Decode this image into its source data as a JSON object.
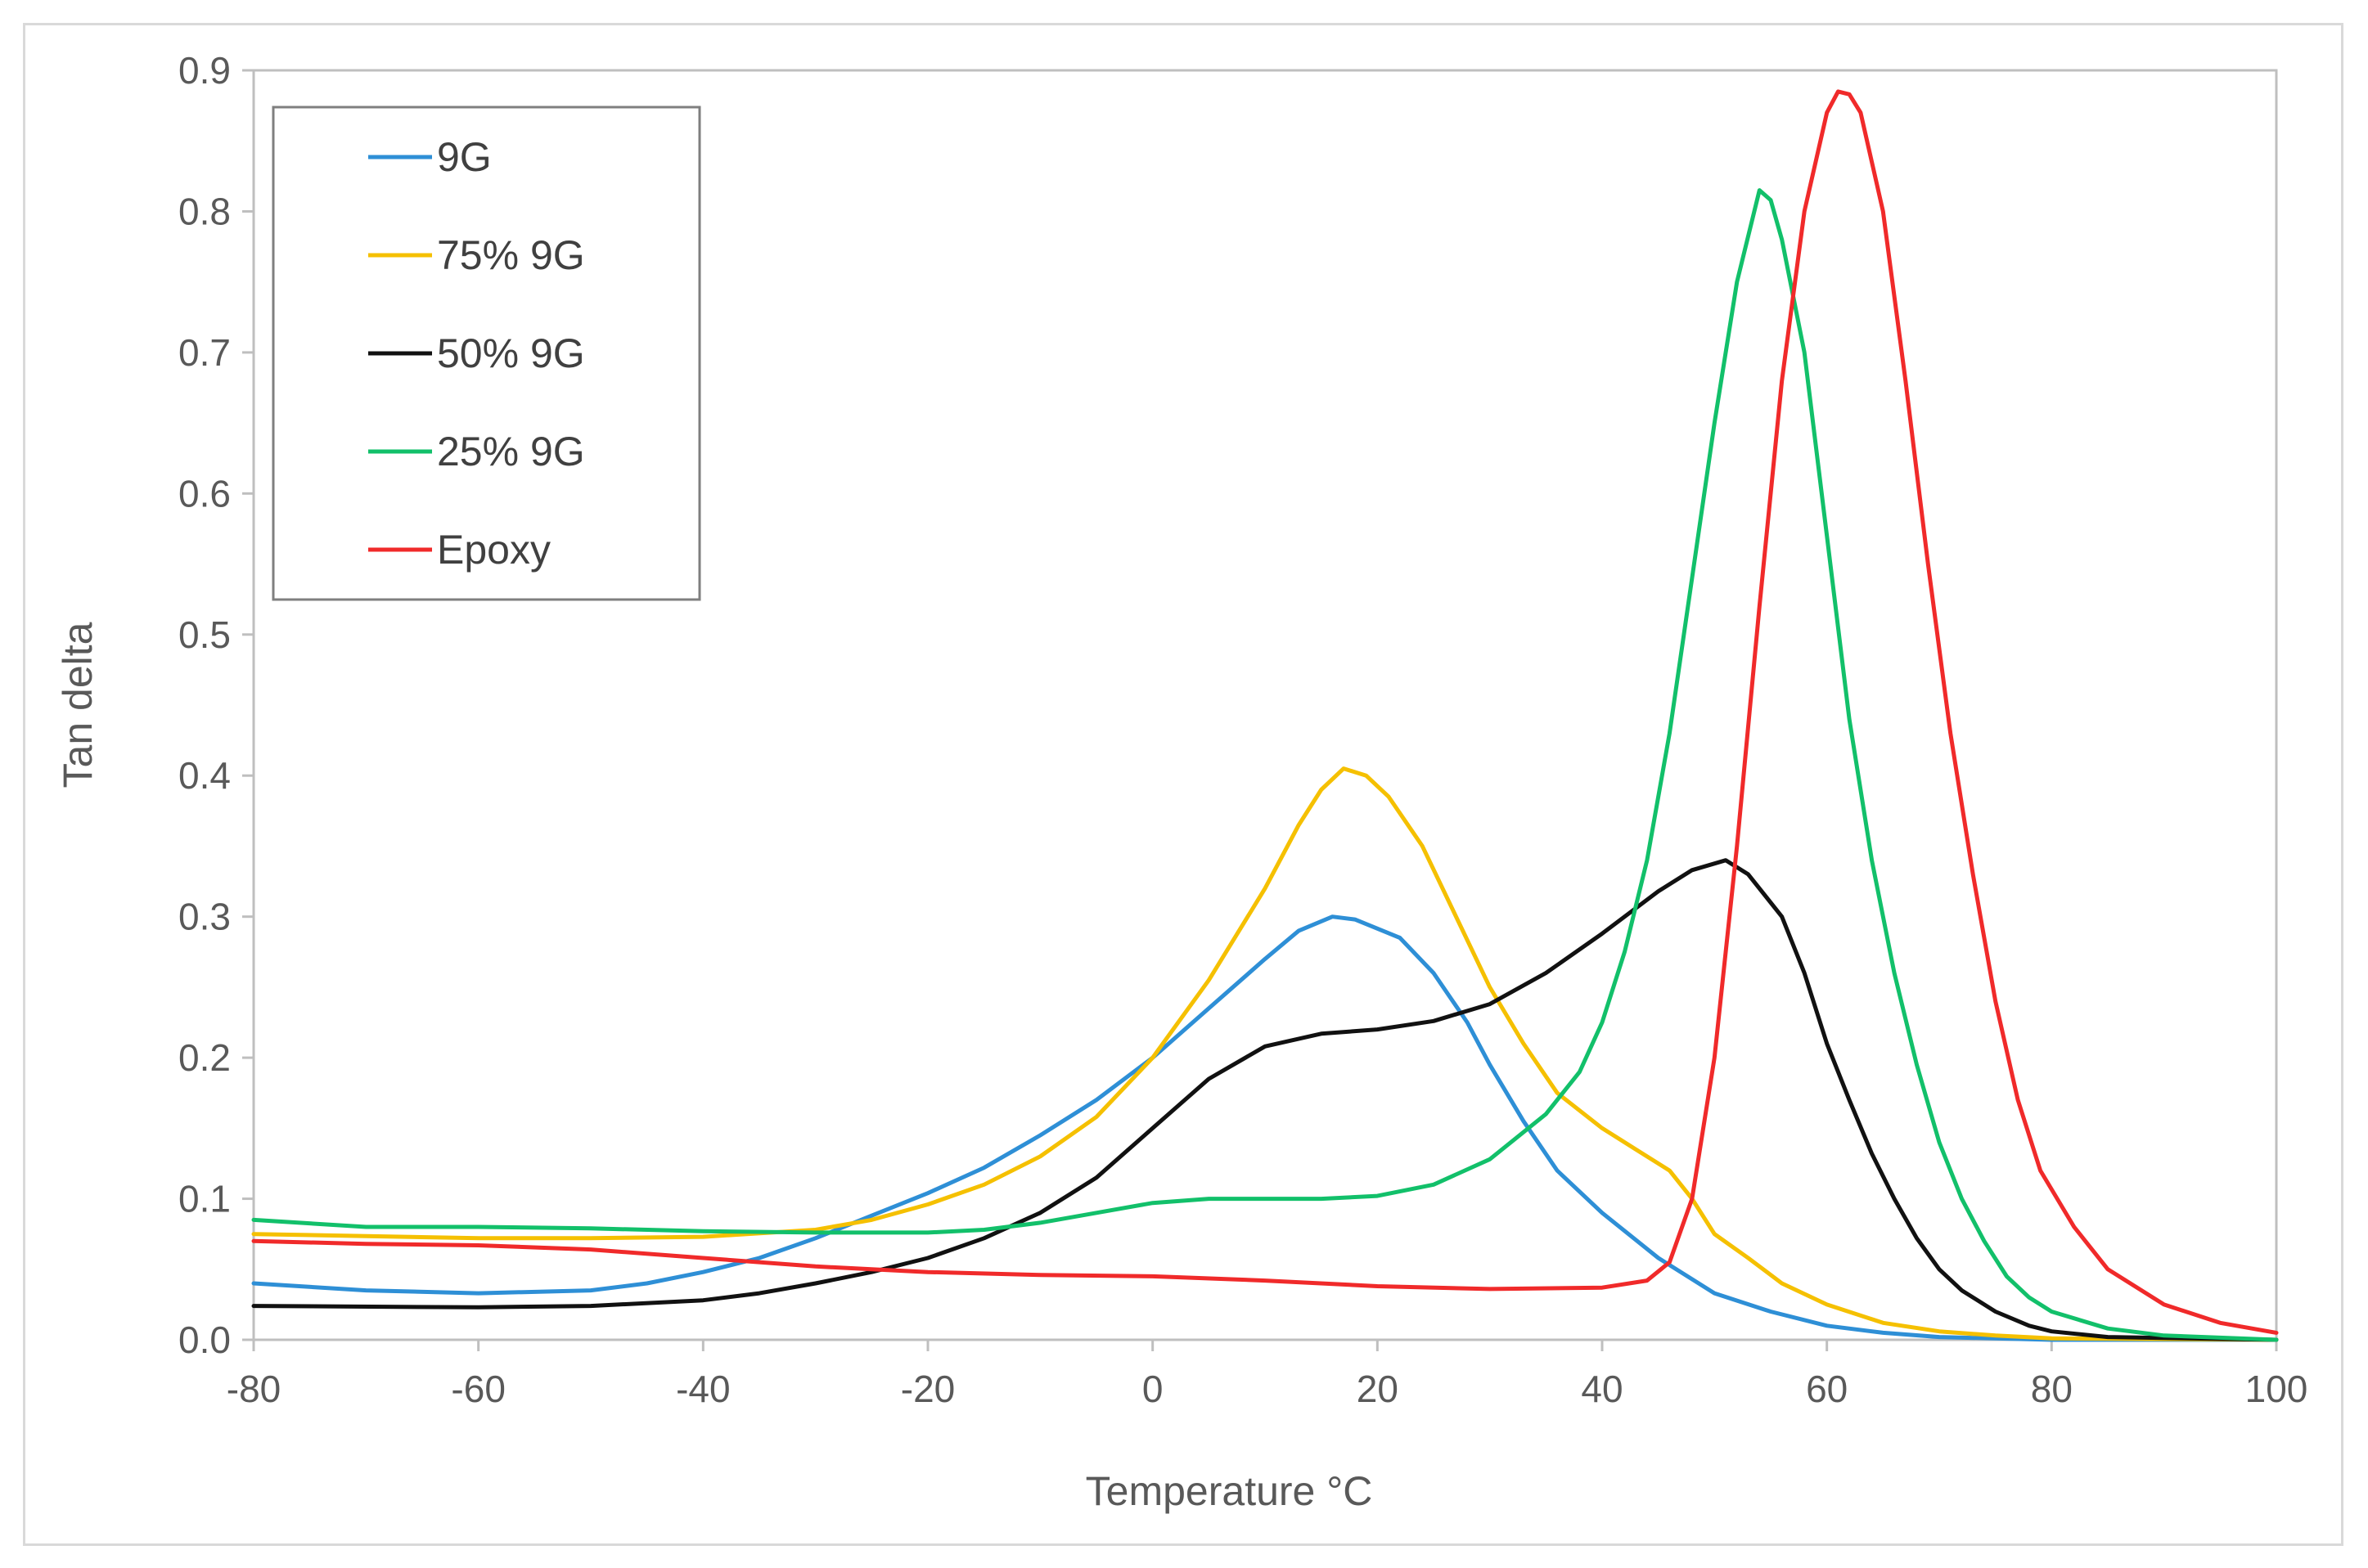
{
  "chart_data": {
    "type": "line",
    "title": "",
    "xlabel": "Temperature °C",
    "ylabel": "Tan delta",
    "xlim": [
      -80,
      100
    ],
    "ylim": [
      0,
      0.9
    ],
    "xticks": [
      -80,
      -60,
      -40,
      -20,
      0,
      20,
      40,
      60,
      80,
      100
    ],
    "xtick_labels": [
      "-80",
      "-60",
      "-40",
      "-20",
      "0",
      "20",
      "40",
      "60",
      "80",
      "100"
    ],
    "yticks": [
      0,
      0.1,
      0.2,
      0.3,
      0.4,
      0.5,
      0.6,
      0.7,
      0.8,
      0.9
    ],
    "ytick_labels": [
      "0.0",
      "0.1",
      "0.2",
      "0.3",
      "0.4",
      "0.5",
      "0.6",
      "0.7",
      "0.8",
      "0.9"
    ],
    "grid": false,
    "legend_position": "top-left",
    "series": [
      {
        "name": "9G",
        "color": "#2e8fd6",
        "points": [
          [
            -80,
            0.04
          ],
          [
            -70,
            0.035
          ],
          [
            -60,
            0.033
          ],
          [
            -50,
            0.035
          ],
          [
            -45,
            0.04
          ],
          [
            -40,
            0.048
          ],
          [
            -35,
            0.058
          ],
          [
            -30,
            0.072
          ],
          [
            -25,
            0.088
          ],
          [
            -20,
            0.104
          ],
          [
            -15,
            0.122
          ],
          [
            -10,
            0.145
          ],
          [
            -5,
            0.17
          ],
          [
            0,
            0.2
          ],
          [
            5,
            0.235
          ],
          [
            10,
            0.27
          ],
          [
            13,
            0.29
          ],
          [
            16,
            0.3
          ],
          [
            18,
            0.298
          ],
          [
            22,
            0.285
          ],
          [
            25,
            0.26
          ],
          [
            28,
            0.225
          ],
          [
            30,
            0.195
          ],
          [
            33,
            0.155
          ],
          [
            36,
            0.12
          ],
          [
            40,
            0.09
          ],
          [
            45,
            0.058
          ],
          [
            50,
            0.033
          ],
          [
            55,
            0.02
          ],
          [
            60,
            0.01
          ],
          [
            65,
            0.005
          ],
          [
            70,
            0.002
          ],
          [
            80,
            0.0
          ],
          [
            100,
            0.0
          ]
        ]
      },
      {
        "name": "75% 9G",
        "color": "#f5c000",
        "points": [
          [
            -80,
            0.075
          ],
          [
            -60,
            0.072
          ],
          [
            -50,
            0.072
          ],
          [
            -40,
            0.073
          ],
          [
            -30,
            0.078
          ],
          [
            -25,
            0.085
          ],
          [
            -20,
            0.096
          ],
          [
            -15,
            0.11
          ],
          [
            -10,
            0.13
          ],
          [
            -5,
            0.158
          ],
          [
            0,
            0.2
          ],
          [
            5,
            0.255
          ],
          [
            10,
            0.32
          ],
          [
            13,
            0.365
          ],
          [
            15,
            0.39
          ],
          [
            17,
            0.405
          ],
          [
            19,
            0.4
          ],
          [
            21,
            0.385
          ],
          [
            24,
            0.35
          ],
          [
            27,
            0.3
          ],
          [
            30,
            0.25
          ],
          [
            33,
            0.21
          ],
          [
            36,
            0.175
          ],
          [
            40,
            0.15
          ],
          [
            43,
            0.135
          ],
          [
            46,
            0.12
          ],
          [
            48,
            0.1
          ],
          [
            50,
            0.075
          ],
          [
            53,
            0.058
          ],
          [
            56,
            0.04
          ],
          [
            60,
            0.025
          ],
          [
            65,
            0.012
          ],
          [
            70,
            0.006
          ],
          [
            75,
            0.003
          ],
          [
            80,
            0.001
          ],
          [
            100,
            0.0
          ]
        ]
      },
      {
        "name": "50% 9G",
        "color": "#111111",
        "points": [
          [
            -80,
            0.024
          ],
          [
            -60,
            0.023
          ],
          [
            -50,
            0.024
          ],
          [
            -40,
            0.028
          ],
          [
            -35,
            0.033
          ],
          [
            -30,
            0.04
          ],
          [
            -25,
            0.048
          ],
          [
            -20,
            0.058
          ],
          [
            -15,
            0.072
          ],
          [
            -10,
            0.09
          ],
          [
            -5,
            0.115
          ],
          [
            0,
            0.15
          ],
          [
            5,
            0.185
          ],
          [
            10,
            0.208
          ],
          [
            15,
            0.217
          ],
          [
            20,
            0.22
          ],
          [
            25,
            0.226
          ],
          [
            30,
            0.238
          ],
          [
            35,
            0.26
          ],
          [
            40,
            0.288
          ],
          [
            45,
            0.318
          ],
          [
            48,
            0.333
          ],
          [
            51,
            0.34
          ],
          [
            53,
            0.33
          ],
          [
            56,
            0.3
          ],
          [
            58,
            0.26
          ],
          [
            60,
            0.21
          ],
          [
            62,
            0.17
          ],
          [
            64,
            0.132
          ],
          [
            66,
            0.1
          ],
          [
            68,
            0.072
          ],
          [
            70,
            0.05
          ],
          [
            72,
            0.035
          ],
          [
            75,
            0.02
          ],
          [
            78,
            0.01
          ],
          [
            80,
            0.006
          ],
          [
            85,
            0.002
          ],
          [
            100,
            0.0
          ]
        ]
      },
      {
        "name": "25% 9G",
        "color": "#12c06a",
        "points": [
          [
            -80,
            0.085
          ],
          [
            -70,
            0.08
          ],
          [
            -60,
            0.08
          ],
          [
            -50,
            0.079
          ],
          [
            -40,
            0.077
          ],
          [
            -30,
            0.076
          ],
          [
            -20,
            0.076
          ],
          [
            -15,
            0.078
          ],
          [
            -10,
            0.083
          ],
          [
            -5,
            0.09
          ],
          [
            0,
            0.097
          ],
          [
            5,
            0.1
          ],
          [
            10,
            0.1
          ],
          [
            15,
            0.1
          ],
          [
            20,
            0.102
          ],
          [
            25,
            0.11
          ],
          [
            30,
            0.128
          ],
          [
            35,
            0.16
          ],
          [
            38,
            0.19
          ],
          [
            40,
            0.225
          ],
          [
            42,
            0.275
          ],
          [
            44,
            0.34
          ],
          [
            46,
            0.43
          ],
          [
            48,
            0.54
          ],
          [
            50,
            0.65
          ],
          [
            52,
            0.75
          ],
          [
            54,
            0.815
          ],
          [
            55,
            0.808
          ],
          [
            56,
            0.78
          ],
          [
            58,
            0.7
          ],
          [
            60,
            0.57
          ],
          [
            62,
            0.44
          ],
          [
            64,
            0.34
          ],
          [
            66,
            0.26
          ],
          [
            68,
            0.195
          ],
          [
            70,
            0.14
          ],
          [
            72,
            0.1
          ],
          [
            74,
            0.07
          ],
          [
            76,
            0.045
          ],
          [
            78,
            0.03
          ],
          [
            80,
            0.02
          ],
          [
            85,
            0.008
          ],
          [
            90,
            0.003
          ],
          [
            100,
            0.0
          ]
        ]
      },
      {
        "name": "Epoxy",
        "color": "#f02a2a",
        "points": [
          [
            -80,
            0.07
          ],
          [
            -70,
            0.068
          ],
          [
            -60,
            0.067
          ],
          [
            -50,
            0.064
          ],
          [
            -40,
            0.058
          ],
          [
            -30,
            0.052
          ],
          [
            -20,
            0.048
          ],
          [
            -10,
            0.046
          ],
          [
            0,
            0.045
          ],
          [
            10,
            0.042
          ],
          [
            20,
            0.038
          ],
          [
            30,
            0.036
          ],
          [
            40,
            0.037
          ],
          [
            44,
            0.042
          ],
          [
            46,
            0.055
          ],
          [
            48,
            0.1
          ],
          [
            50,
            0.2
          ],
          [
            52,
            0.35
          ],
          [
            54,
            0.52
          ],
          [
            56,
            0.68
          ],
          [
            58,
            0.8
          ],
          [
            60,
            0.87
          ],
          [
            61,
            0.885
          ],
          [
            62,
            0.883
          ],
          [
            63,
            0.87
          ],
          [
            65,
            0.8
          ],
          [
            67,
            0.68
          ],
          [
            69,
            0.55
          ],
          [
            71,
            0.43
          ],
          [
            73,
            0.33
          ],
          [
            75,
            0.24
          ],
          [
            77,
            0.17
          ],
          [
            79,
            0.12
          ],
          [
            82,
            0.08
          ],
          [
            85,
            0.05
          ],
          [
            90,
            0.025
          ],
          [
            95,
            0.012
          ],
          [
            100,
            0.005
          ]
        ]
      }
    ]
  }
}
